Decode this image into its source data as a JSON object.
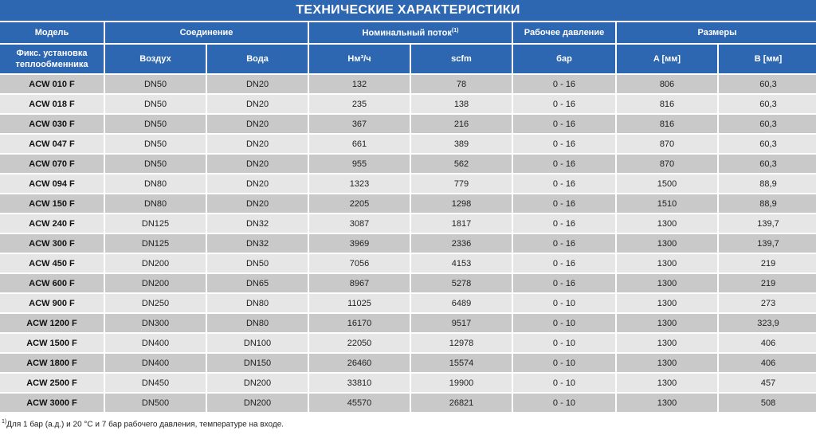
{
  "title": "ТЕХНИЧЕСКИЕ ХАРАКТЕРИСТИКИ",
  "header": {
    "model": "Модель",
    "connection": "Соединение",
    "flow": "Номинальный поток",
    "flow_note": "(1)",
    "pressure": "Рабочее давление",
    "dimensions": "Размеры",
    "install": "Фикс. установка теплообменника",
    "air": "Воздух",
    "water": "Вода",
    "nm3h": "Нм³/ч",
    "scfm": "scfm",
    "bar": "бар",
    "a_mm": "A [мм]",
    "b_mm": "B [мм]"
  },
  "colors": {
    "header_bg": "#2e67b1",
    "row_dark": "#c9c9c9",
    "row_light": "#e6e6e6"
  },
  "rows": [
    [
      "ACW 010 F",
      "DN50",
      "DN20",
      "132",
      "78",
      "0 - 16",
      "806",
      "60,3"
    ],
    [
      "ACW 018 F",
      "DN50",
      "DN20",
      "235",
      "138",
      "0 - 16",
      "816",
      "60,3"
    ],
    [
      "ACW 030 F",
      "DN50",
      "DN20",
      "367",
      "216",
      "0 - 16",
      "816",
      "60,3"
    ],
    [
      "ACW 047 F",
      "DN50",
      "DN20",
      "661",
      "389",
      "0 - 16",
      "870",
      "60,3"
    ],
    [
      "ACW 070 F",
      "DN50",
      "DN20",
      "955",
      "562",
      "0 - 16",
      "870",
      "60,3"
    ],
    [
      "ACW 094 F",
      "DN80",
      "DN20",
      "1323",
      "779",
      "0 - 16",
      "1500",
      "88,9"
    ],
    [
      "ACW 150 F",
      "DN80",
      "DN20",
      "2205",
      "1298",
      "0 - 16",
      "1510",
      "88,9"
    ],
    [
      "ACW 240 F",
      "DN125",
      "DN32",
      "3087",
      "1817",
      "0 - 16",
      "1300",
      "139,7"
    ],
    [
      "ACW 300 F",
      "DN125",
      "DN32",
      "3969",
      "2336",
      "0 - 16",
      "1300",
      "139,7"
    ],
    [
      "ACW 450 F",
      "DN200",
      "DN50",
      "7056",
      "4153",
      "0 - 16",
      "1300",
      "219"
    ],
    [
      "ACW 600 F",
      "DN200",
      "DN65",
      "8967",
      "5278",
      "0 - 16",
      "1300",
      "219"
    ],
    [
      "ACW 900 F",
      "DN250",
      "DN80",
      "11025",
      "6489",
      "0 - 10",
      "1300",
      "273"
    ],
    [
      "ACW 1200 F",
      "DN300",
      "DN80",
      "16170",
      "9517",
      "0 - 10",
      "1300",
      "323,9"
    ],
    [
      "ACW 1500 F",
      "DN400",
      "DN100",
      "22050",
      "12978",
      "0 - 10",
      "1300",
      "406"
    ],
    [
      "ACW 1800 F",
      "DN400",
      "DN150",
      "26460",
      "15574",
      "0 - 10",
      "1300",
      "406"
    ],
    [
      "ACW 2500 F",
      "DN450",
      "DN200",
      "33810",
      "19900",
      "0 - 10",
      "1300",
      "457"
    ],
    [
      "ACW 3000 F",
      "DN500",
      "DN200",
      "45570",
      "26821",
      "0 - 10",
      "1300",
      "508"
    ]
  ],
  "footnote_mark": "1)",
  "footnote": "Для 1 бар (а.д.) и 20 °C и 7 бар рабочего давления, температуре на входе."
}
